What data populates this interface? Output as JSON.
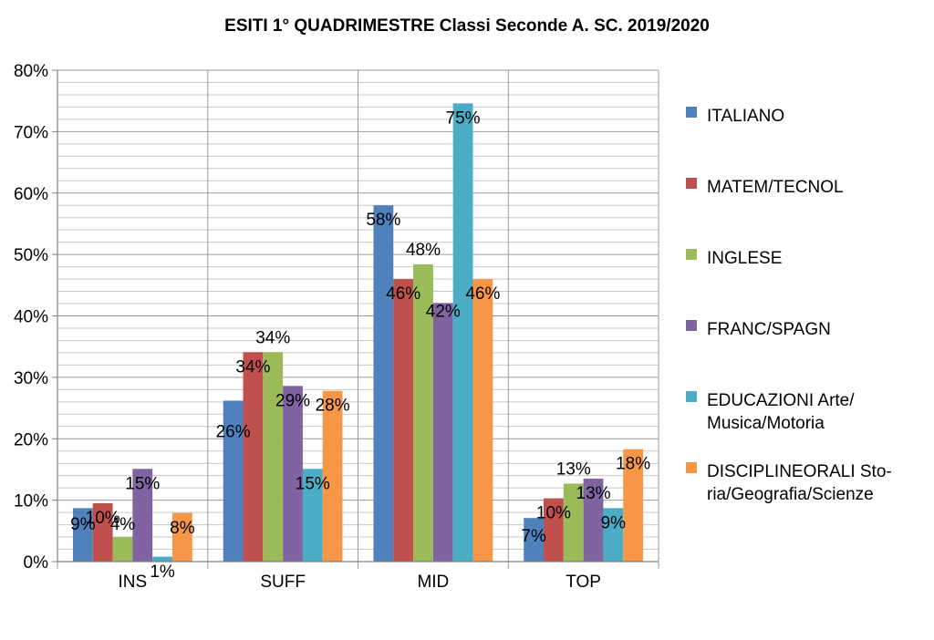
{
  "chart_data": {
    "type": "bar",
    "title": "ESITI 1° QUADRIMESTRE Classi Seconde A. SC. 2019/2020",
    "categories": [
      "INS",
      "SUFF",
      "MID",
      "TOP"
    ],
    "ylim": [
      0,
      80
    ],
    "yticks": [
      "0%",
      "10%",
      "20%",
      "30%",
      "40%",
      "50%",
      "60%",
      "70%",
      "80%"
    ],
    "grid": "horizontal minor every 2%, vertical separators between categories",
    "legend_position": "right",
    "series": [
      {
        "name": "ITALIANO",
        "color": "#4F81BD",
        "values": [
          8.7,
          26.2,
          58.0,
          7.1
        ],
        "labels": [
          "9%",
          "26%",
          "58%",
          "7%"
        ]
      },
      {
        "name": "MATEM/TECNOL",
        "color": "#C0504D",
        "values": [
          9.5,
          34.1,
          46.0,
          10.3
        ],
        "labels": [
          "10%",
          "34%",
          "46%",
          "10%"
        ]
      },
      {
        "name": "INGLESE",
        "color": "#9BBB59",
        "values": [
          4.0,
          34.1,
          48.4,
          12.7
        ],
        "labels": [
          "4%",
          "34%",
          "48%",
          "13%"
        ]
      },
      {
        "name": "FRANC/SPAGN",
        "color": "#8064A2",
        "values": [
          15.1,
          28.6,
          42.1,
          13.5
        ],
        "labels": [
          "15%",
          "29%",
          "42%",
          "13%"
        ]
      },
      {
        "name": "EDUCAZIONI Arte/\nMusica/Motoria",
        "color": "#4BACC6",
        "values": [
          0.8,
          15.1,
          74.6,
          8.7
        ],
        "labels": [
          "1%",
          "15%",
          "75%",
          "9%"
        ]
      },
      {
        "name": "DISCIPLINEORALI Sto-\nria/Geografia/Scienze",
        "color": "#F79646",
        "values": [
          7.9,
          27.8,
          46.0,
          18.3
        ],
        "labels": [
          "8%",
          "28%",
          "46%",
          "18%"
        ]
      }
    ]
  }
}
